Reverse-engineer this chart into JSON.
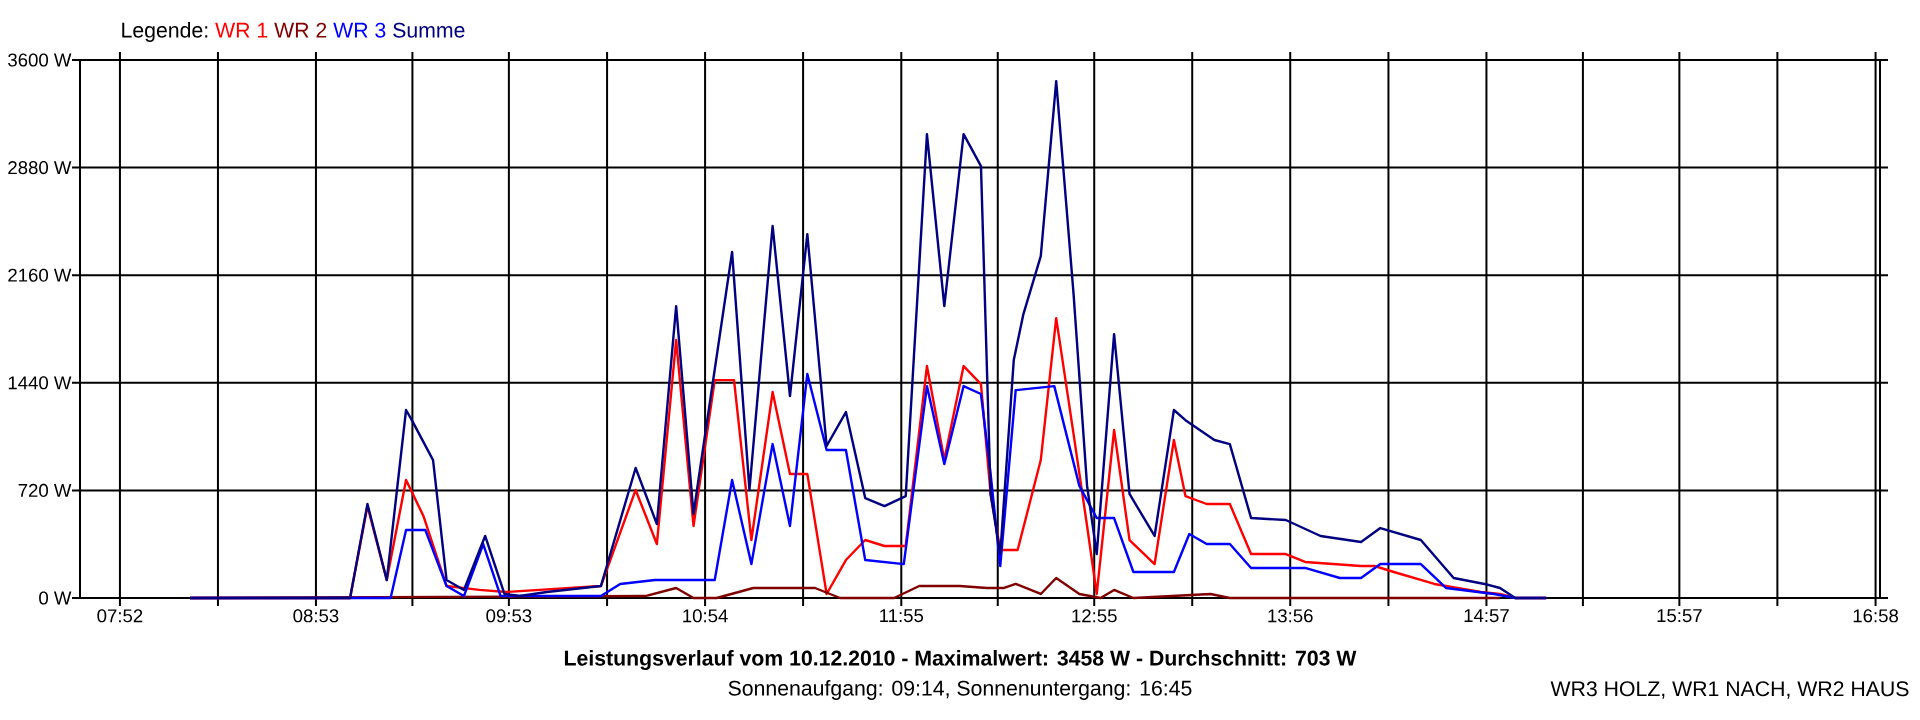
{
  "chart_data": {
    "type": "line",
    "title": "Leistungsverlauf vom 10.12.2010 - Maximalwert: 3458 W - Durchschnitt: 703 W",
    "subtitle": "Sonnenaufgang: 09:14, Sonnenuntergang: 16:45",
    "legend_title": "Legende:",
    "annotations": [
      "WR3 HOLZ, WR1 NACH, WR2 HAUS"
    ],
    "xlim": [
      7.66,
      16.99
    ],
    "xticks": [
      {
        "value": 7.867,
        "label": "07:52"
      },
      {
        "value": 8.375,
        "label": null
      },
      {
        "value": 8.883,
        "label": "08:53"
      },
      {
        "value": 9.383,
        "label": null
      },
      {
        "value": 9.883,
        "label": "09:53"
      },
      {
        "value": 10.392,
        "label": null
      },
      {
        "value": 10.9,
        "label": "10:54"
      },
      {
        "value": 11.408,
        "label": null
      },
      {
        "value": 11.917,
        "label": "11:55"
      },
      {
        "value": 12.417,
        "label": null
      },
      {
        "value": 12.917,
        "label": "12:55"
      },
      {
        "value": 13.425,
        "label": null
      },
      {
        "value": 13.933,
        "label": "13:56"
      },
      {
        "value": 14.442,
        "label": null
      },
      {
        "value": 14.95,
        "label": "14:57"
      },
      {
        "value": 15.45,
        "label": null
      },
      {
        "value": 15.95,
        "label": "15:57"
      },
      {
        "value": 16.458,
        "label": null
      },
      {
        "value": 16.967,
        "label": "16:58"
      }
    ],
    "ylim": [
      0,
      3600
    ],
    "yticks": [
      {
        "value": 0,
        "label": "0 W"
      },
      {
        "value": 720,
        "label": "720 W"
      },
      {
        "value": 1440,
        "label": "1440 W"
      },
      {
        "value": 2160,
        "label": "2160 W"
      },
      {
        "value": 2880,
        "label": "2880 W"
      },
      {
        "value": 3600,
        "label": "3600 W"
      }
    ],
    "grid": true,
    "legend": "top left",
    "line_style": "solid",
    "series": [
      {
        "name": "WR 1",
        "color": "#ff0000",
        "x": [
          8.23,
          9.06,
          9.15,
          9.25,
          9.35,
          9.44,
          9.56,
          9.73,
          9.87,
          10.36,
          10.54,
          10.65,
          10.75,
          10.84,
          10.95,
          11.05,
          11.14,
          11.25,
          11.34,
          11.43,
          11.53,
          11.63,
          11.73,
          11.83,
          11.94,
          12.05,
          12.14,
          12.24,
          12.33,
          12.38,
          12.43,
          12.52,
          12.64,
          12.72,
          12.81,
          12.88,
          12.93,
          13.02,
          13.1,
          13.23,
          13.33,
          13.39,
          13.5,
          13.62,
          13.73,
          13.91,
          14.01,
          14.3,
          14.37,
          14.47,
          14.68,
          14.92,
          15.02,
          15.1,
          15.26
        ],
        "values": [
          0,
          0,
          615,
          120,
          790,
          549,
          80,
          54,
          40,
          80,
          723,
          361,
          1726,
          482,
          1458,
          1458,
          388,
          1378,
          830,
          830,
          27,
          254,
          388,
          348,
          348,
          1552,
          923,
          1552,
          1431,
          696,
          321,
          321,
          923,
          1873,
          1097,
          482,
          27,
          1124,
          388,
          227,
          1057,
          682,
          629,
          629,
          294,
          294,
          241,
          214,
          214,
          174,
          94,
          40,
          27,
          0,
          0
        ]
      },
      {
        "name": "WR 2",
        "color": "#800000",
        "x": [
          8.23,
          10.59,
          10.75,
          10.84,
          10.96,
          11.15,
          11.36,
          11.47,
          11.6,
          11.88,
          12.01,
          12.22,
          12.36,
          12.45,
          12.51,
          12.64,
          12.72,
          12.84,
          12.95,
          13.02,
          13.12,
          13.52,
          13.62,
          15.02
        ],
        "values": [
          0,
          13,
          67,
          0,
          0,
          67,
          67,
          67,
          0,
          0,
          80,
          80,
          67,
          67,
          94,
          27,
          134,
          27,
          0,
          54,
          0,
          27,
          0,
          0
        ]
      },
      {
        "name": "WR 3",
        "color": "#0000ff",
        "x": [
          8.23,
          9.27,
          9.35,
          9.45,
          9.56,
          9.65,
          9.75,
          9.84,
          10.36,
          10.46,
          10.64,
          10.95,
          11.04,
          11.14,
          11.25,
          11.34,
          11.43,
          11.53,
          11.63,
          11.73,
          11.93,
          12.05,
          12.14,
          12.24,
          12.33,
          12.38,
          12.43,
          12.51,
          12.71,
          12.84,
          12.93,
          13.02,
          13.12,
          13.33,
          13.41,
          13.5,
          13.62,
          13.73,
          14.01,
          14.19,
          14.3,
          14.4,
          14.61,
          14.74,
          14.99,
          15.1,
          15.26
        ],
        "values": [
          0,
          0,
          455,
          455,
          80,
          13,
          361,
          13,
          13,
          94,
          120,
          120,
          790,
          227,
          1030,
          482,
          1499,
          990,
          990,
          254,
          227,
          1418,
          896,
          1418,
          1365,
          830,
          214,
          1391,
          1418,
          750,
          535,
          535,
          174,
          174,
          428,
          361,
          361,
          201,
          201,
          134,
          134,
          227,
          227,
          67,
          27,
          0,
          0
        ]
      },
      {
        "name": "Summe",
        "color": "#000080",
        "x": [
          8.23,
          9.06,
          9.15,
          9.25,
          9.35,
          9.38,
          9.49,
          9.56,
          9.65,
          9.76,
          9.86,
          9.94,
          10.08,
          10.36,
          10.54,
          10.65,
          10.75,
          10.84,
          10.87,
          11.04,
          11.13,
          11.25,
          11.34,
          11.43,
          11.53,
          11.63,
          11.73,
          11.83,
          11.94,
          12.05,
          12.14,
          12.24,
          12.33,
          12.38,
          12.43,
          12.5,
          12.55,
          12.64,
          12.72,
          12.81,
          12.88,
          12.93,
          13.02,
          13.1,
          13.23,
          13.33,
          13.39,
          13.54,
          13.62,
          13.73,
          13.91,
          14.09,
          14.3,
          14.4,
          14.61,
          14.78,
          14.94,
          15.02,
          15.1,
          15.26
        ],
        "values": [
          0,
          0,
          629,
          120,
          1258,
          1190,
          923,
          120,
          54,
          415,
          27,
          13,
          40,
          80,
          870,
          495,
          1953,
          562,
          830,
          2315,
          723,
          2490,
          1351,
          2435,
          1017,
          1244,
          669,
          615,
          682,
          3104,
          1953,
          3104,
          2890,
          696,
          294,
          1592,
          1900,
          2288,
          3458,
          2034,
          750,
          294,
          1766,
          696,
          415,
          1258,
          1190,
          1057,
          1030,
          535,
          522,
          415,
          375,
          468,
          388,
          134,
          94,
          67,
          0,
          0
        ]
      }
    ]
  }
}
